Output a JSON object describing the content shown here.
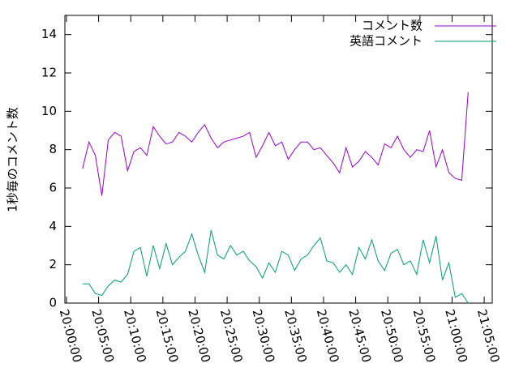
{
  "chart_data": {
    "type": "line",
    "ylabel": "1秒毎のコメント数",
    "x": [
      "20:02:30",
      "20:03:30",
      "20:04:30",
      "20:05:30",
      "20:06:30",
      "20:07:30",
      "20:08:30",
      "20:09:30",
      "20:10:30",
      "20:11:30",
      "20:12:30",
      "20:13:30",
      "20:14:30",
      "20:15:30",
      "20:16:30",
      "20:17:30",
      "20:18:30",
      "20:19:30",
      "20:20:30",
      "20:21:30",
      "20:22:30",
      "20:23:30",
      "20:24:30",
      "20:25:30",
      "20:26:30",
      "20:27:30",
      "20:28:30",
      "20:29:30",
      "20:30:30",
      "20:31:30",
      "20:32:30",
      "20:33:30",
      "20:34:30",
      "20:35:30",
      "20:36:30",
      "20:37:30",
      "20:38:30",
      "20:39:30",
      "20:40:30",
      "20:41:30",
      "20:42:30",
      "20:43:30",
      "20:44:30",
      "20:45:30",
      "20:46:30",
      "20:47:30",
      "20:48:30",
      "20:49:30",
      "20:50:30",
      "20:51:30",
      "20:52:30",
      "20:53:30",
      "20:54:30",
      "20:55:30",
      "20:56:30",
      "20:57:30",
      "20:58:30",
      "20:59:30",
      "21:00:30",
      "21:01:30",
      "21:02:30"
    ],
    "series": [
      {
        "name": "コメント数",
        "color": "#9400d3",
        "values": [
          7.0,
          8.4,
          7.7,
          5.6,
          8.5,
          8.9,
          8.7,
          6.9,
          7.9,
          8.1,
          7.7,
          9.2,
          8.7,
          8.3,
          8.4,
          8.9,
          8.7,
          8.4,
          8.9,
          9.3,
          8.6,
          8.1,
          8.4,
          8.5,
          8.6,
          8.7,
          8.9,
          7.6,
          8.2,
          8.9,
          8.2,
          8.4,
          7.5,
          8.0,
          8.4,
          8.4,
          8.0,
          8.1,
          7.7,
          7.3,
          6.8,
          8.1,
          7.1,
          7.4,
          7.9,
          7.6,
          7.2,
          8.3,
          8.1,
          8.7,
          8.0,
          7.6,
          8.0,
          7.9,
          9.0,
          7.1,
          8.0,
          6.8,
          6.5,
          6.4,
          11.0
        ]
      },
      {
        "name": "英語コメント",
        "color": "#009e73",
        "values": [
          1.0,
          1.0,
          0.5,
          0.4,
          0.9,
          1.2,
          1.1,
          1.5,
          2.7,
          2.9,
          1.4,
          3.0,
          1.8,
          3.1,
          2.0,
          2.4,
          2.7,
          3.6,
          2.5,
          1.6,
          3.8,
          2.5,
          2.3,
          3.0,
          2.5,
          2.7,
          2.2,
          1.9,
          1.3,
          2.1,
          1.6,
          2.7,
          2.5,
          1.7,
          2.3,
          2.5,
          3.0,
          3.4,
          2.2,
          2.1,
          1.6,
          2.0,
          1.5,
          2.9,
          2.3,
          3.3,
          2.2,
          1.7,
          2.6,
          2.8,
          2.0,
          2.2,
          1.5,
          3.3,
          2.1,
          3.5,
          1.2,
          2.1,
          0.3,
          0.5,
          0.0
        ]
      }
    ],
    "xlim": [
      "19:59:45",
      "21:06:15"
    ],
    "xticks": [
      "20:00:00",
      "20:05:00",
      "20:10:00",
      "20:15:00",
      "20:20:00",
      "20:25:00",
      "20:30:00",
      "20:35:00",
      "20:40:00",
      "20:45:00",
      "20:50:00",
      "20:55:00",
      "21:00:00",
      "21:05:00"
    ],
    "ylim": [
      0,
      15
    ],
    "yticks": [
      0,
      2,
      4,
      6,
      8,
      10,
      12,
      14
    ],
    "grid": false,
    "legend": "top-right"
  }
}
